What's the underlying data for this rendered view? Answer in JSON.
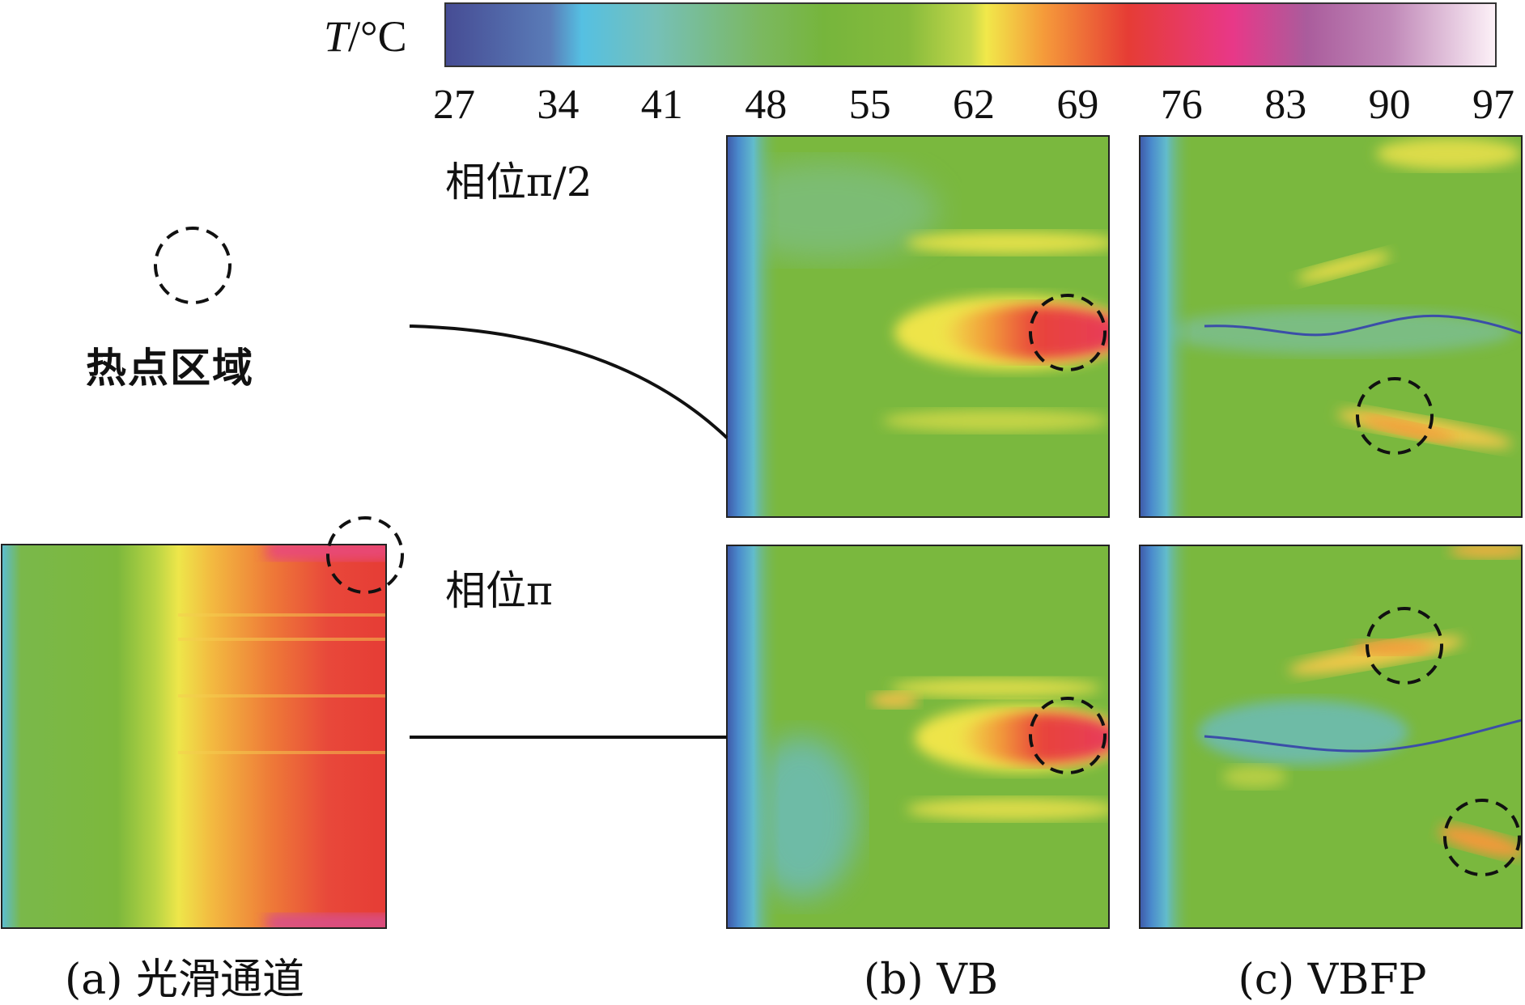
{
  "colorbar": {
    "title_var": "T",
    "title_unit": "/°C",
    "ticks": [
      "27",
      "34",
      "41",
      "48",
      "55",
      "62",
      "69",
      "76",
      "83",
      "90",
      "97"
    ],
    "range": [
      27,
      97
    ],
    "colors": [
      "#464c94",
      "#55c0e2",
      "#79b840",
      "#f1e84a",
      "#f59a3a",
      "#e63c35",
      "#e83888",
      "#a85c9c",
      "#fbeef6"
    ]
  },
  "legend": {
    "label": "热点区域"
  },
  "phases": {
    "top": "相位π/2",
    "bottom": "相位π"
  },
  "captions": {
    "a": "(a) 光滑通道",
    "b": "(b) VB",
    "c": "(c) VBFP"
  }
}
